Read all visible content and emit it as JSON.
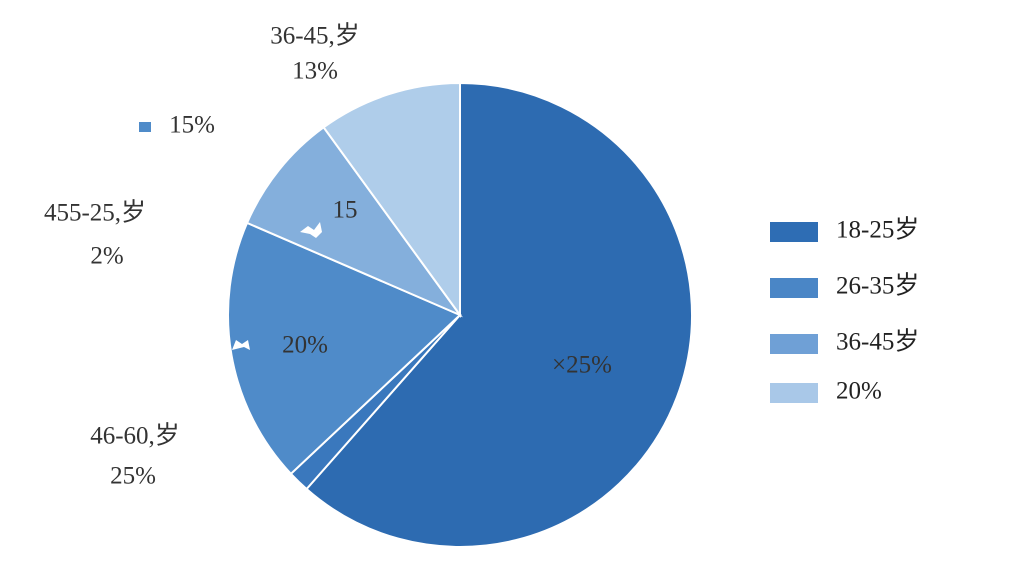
{
  "chart_data": {
    "type": "pie",
    "values": [
      61.5,
      1.5,
      18.5,
      8.5,
      10
    ],
    "colors": [
      "#2d6bb1",
      "#3a78bd",
      "#4f8bc9",
      "#84afdc",
      "#afcdea"
    ],
    "annotations": [
      "36-45,岁",
      "13%",
      "15%",
      "455-25,岁",
      "2%",
      "46-60,岁",
      "25%",
      "15",
      "20%",
      "×25%"
    ],
    "legend": [
      {
        "label": "18-25岁",
        "color": "#2e6db4"
      },
      {
        "label": "26-35岁",
        "color": "#4a86c6"
      },
      {
        "label": "36-45岁",
        "color": "#6fa0d6"
      },
      {
        "label": "20%",
        "color": "#a9c8e8"
      }
    ]
  }
}
